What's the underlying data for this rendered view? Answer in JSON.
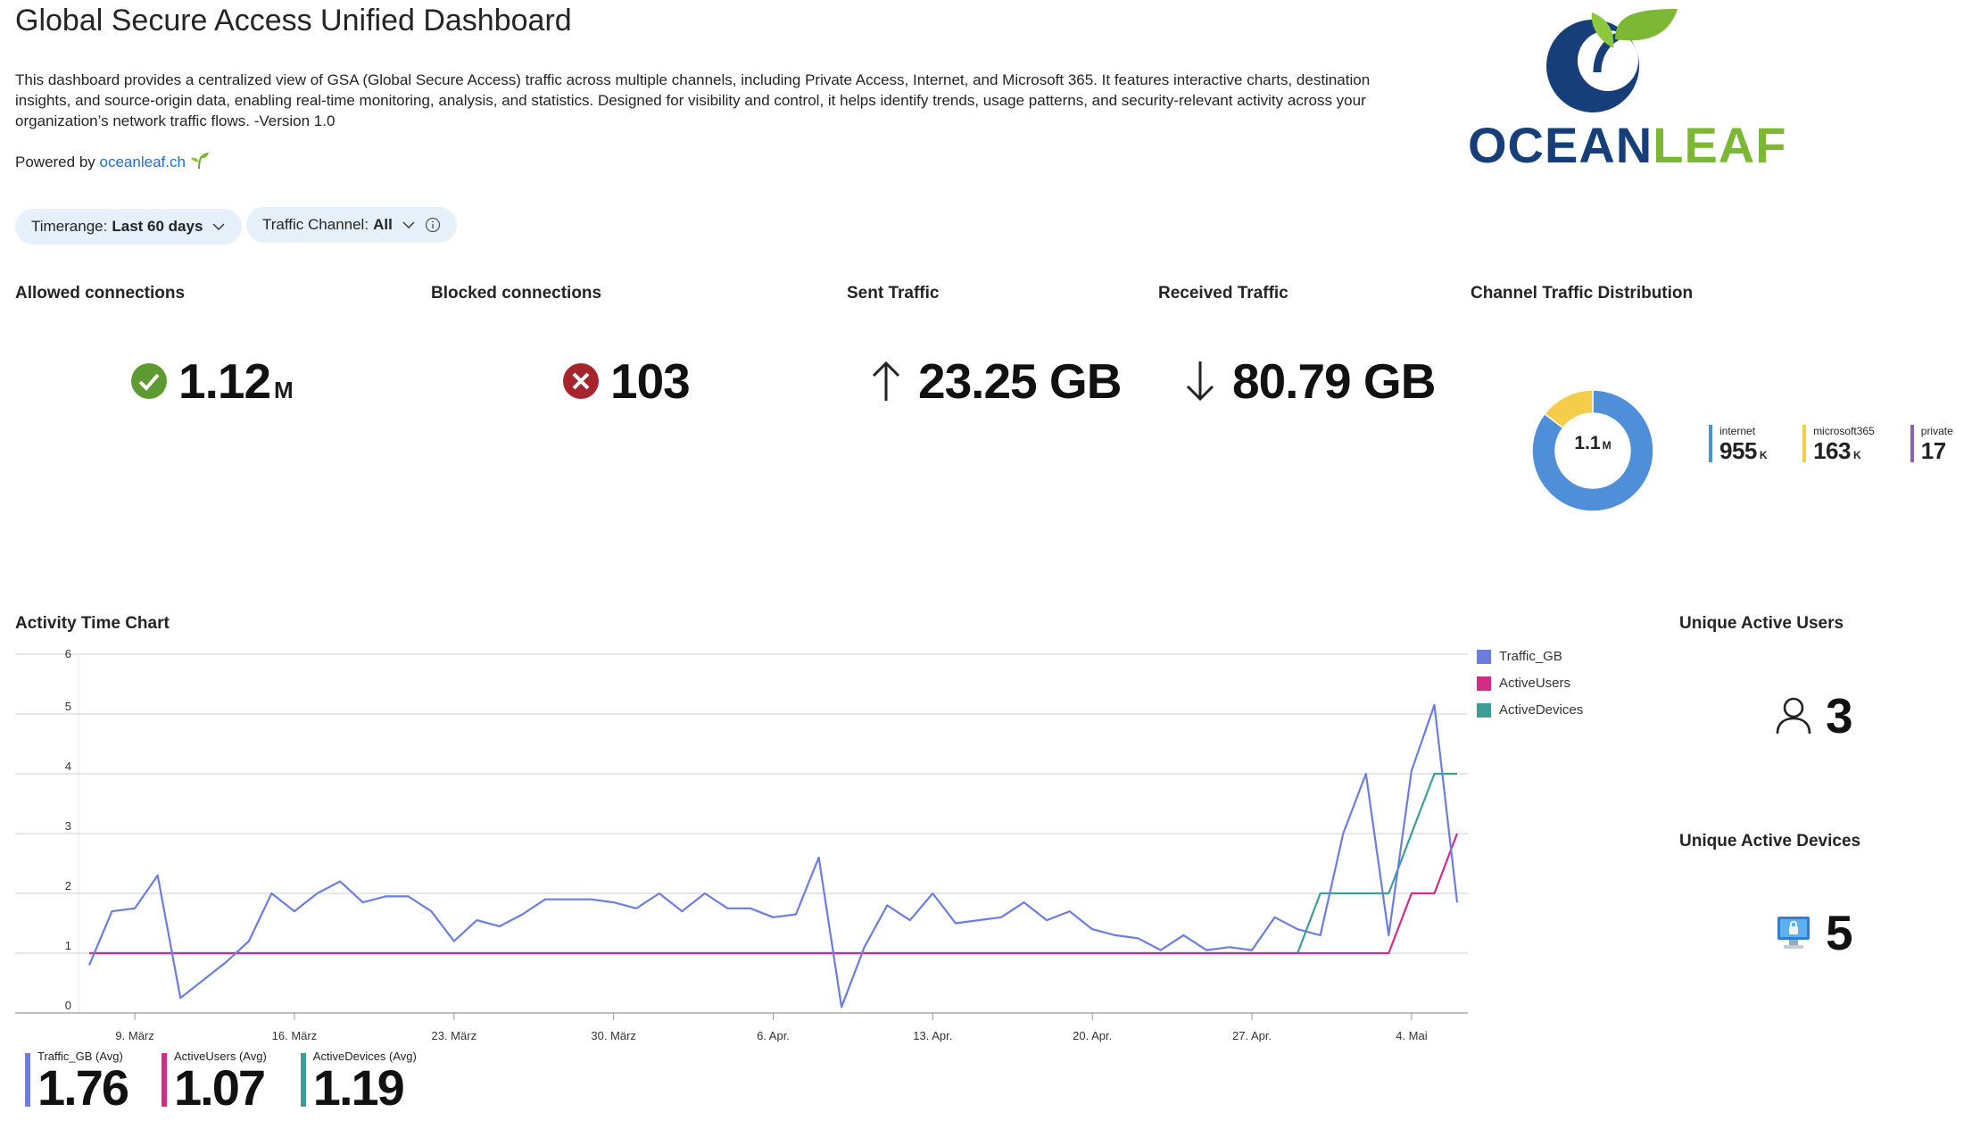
{
  "header": {
    "title": "Global Secure Access Unified Dashboard",
    "description": "This dashboard provides a centralized view of GSA (Global Secure Access) traffic across multiple channels, including Private Access, Internet, and Microsoft 365. It features interactive charts, destination insights, and source-origin data, enabling real-time monitoring, analysis, and statistics. Designed for visibility and control, it helps identify trends, usage patterns, and security-relevant activity across your organization’s network traffic flows. -Version 1.0",
    "powered_label": "Powered by",
    "powered_link": "oceanleaf.ch",
    "logo_text_ocean": "OCEAN",
    "logo_text_leaf": "LEAF"
  },
  "filters": {
    "timerange_label": "Timerange:",
    "timerange_value": "Last 60 days",
    "channel_label": "Traffic Channel:",
    "channel_value": "All"
  },
  "tiles": {
    "allowed": {
      "title": "Allowed connections",
      "value": "1.12",
      "unit": "M",
      "icon": "check-circle-icon"
    },
    "blocked": {
      "title": "Blocked connections",
      "value": "103",
      "icon": "x-circle-icon"
    },
    "sent": {
      "title": "Sent Traffic",
      "value": "23.25 GB",
      "icon": "arrow-up-icon"
    },
    "received": {
      "title": "Received Traffic",
      "value": "80.79 GB",
      "icon": "arrow-down-icon"
    }
  },
  "distribution": {
    "title": "Channel Traffic Distribution",
    "center_value": "1.1",
    "center_unit": "M",
    "items": [
      {
        "name": "internet",
        "value": "955",
        "unit": "K",
        "color": "#4f8fd9",
        "fraction": 0.854
      },
      {
        "name": "microsoft365",
        "value": "163",
        "unit": "K",
        "color": "#f5cd4a",
        "fraction": 0.146
      },
      {
        "name": "private",
        "value": "17",
        "unit": "",
        "color": "#8a63b8",
        "fraction": 2e-05
      }
    ]
  },
  "activity": {
    "title": "Activity Time Chart",
    "legend": [
      {
        "name": "Traffic_GB",
        "color": "#6b7de0"
      },
      {
        "name": "ActiveUsers",
        "color": "#d42b87"
      },
      {
        "name": "ActiveDevices",
        "color": "#3c9e97"
      }
    ],
    "averages": [
      {
        "name": "Traffic_GB (Avg)",
        "value": "1.76",
        "color": "#6b7de0"
      },
      {
        "name": "ActiveUsers (Avg)",
        "value": "1.07",
        "color": "#d42b87"
      },
      {
        "name": "ActiveDevices (Avg)",
        "value": "1.19",
        "color": "#3c9e97"
      }
    ]
  },
  "unique_users": {
    "title": "Unique Active Users",
    "value": "3",
    "icon": "person-icon"
  },
  "unique_devices": {
    "title": "Unique Active Devices",
    "value": "5",
    "icon": "monitor-lock-icon"
  },
  "chart_data": {
    "type": "line",
    "title": "Activity Time Chart",
    "x_start": "2025-03-07",
    "ylim": [
      0,
      6
    ],
    "yticks": [
      0,
      1,
      2,
      3,
      4,
      5,
      6
    ],
    "xtick_labels": [
      "9. März",
      "16. März",
      "23. März",
      "30. März",
      "6. Apr.",
      "13. Apr.",
      "20. Apr.",
      "27. Apr.",
      "4. Mai"
    ],
    "xtick_days": [
      2,
      9,
      16,
      23,
      30,
      37,
      44,
      51,
      58
    ],
    "legend_position": "right",
    "series": [
      {
        "name": "Traffic_GB",
        "color": "#6b7de0",
        "values": [
          0.8,
          1.7,
          1.75,
          2.3,
          0.25,
          0.55,
          0.85,
          1.2,
          2.0,
          1.7,
          2.0,
          2.2,
          1.85,
          1.95,
          1.95,
          1.7,
          1.2,
          1.55,
          1.45,
          1.65,
          1.9,
          1.9,
          1.9,
          1.85,
          1.75,
          2.0,
          1.7,
          2.0,
          1.75,
          1.75,
          1.6,
          1.65,
          2.6,
          0.1,
          1.1,
          1.8,
          1.55,
          2.0,
          1.5,
          1.55,
          1.6,
          1.85,
          1.55,
          1.7,
          1.4,
          1.3,
          1.25,
          1.05,
          1.3,
          1.05,
          1.1,
          1.05,
          1.6,
          1.4,
          1.3,
          3.0,
          4.0,
          1.3,
          4.05,
          5.15,
          1.85
        ]
      },
      {
        "name": "ActiveUsers",
        "color": "#d42b87",
        "values": [
          1,
          1,
          1,
          1,
          1,
          1,
          1,
          1,
          1,
          1,
          1,
          1,
          1,
          1,
          1,
          1,
          1,
          1,
          1,
          1,
          1,
          1,
          1,
          1,
          1,
          1,
          1,
          1,
          1,
          1,
          1,
          1,
          1,
          1,
          1,
          1,
          1,
          1,
          1,
          1,
          1,
          1,
          1,
          1,
          1,
          1,
          1,
          1,
          1,
          1,
          1,
          1,
          1,
          1,
          1,
          1,
          1,
          1,
          2,
          2,
          3
        ]
      },
      {
        "name": "ActiveDevices",
        "color": "#3c9e97",
        "values": [
          1,
          1,
          1,
          1,
          1,
          1,
          1,
          1,
          1,
          1,
          1,
          1,
          1,
          1,
          1,
          1,
          1,
          1,
          1,
          1,
          1,
          1,
          1,
          1,
          1,
          1,
          1,
          1,
          1,
          1,
          1,
          1,
          1,
          1,
          1,
          1,
          1,
          1,
          1,
          1,
          1,
          1,
          1,
          1,
          1,
          1,
          1,
          1,
          1,
          1,
          1,
          1,
          1,
          1,
          2,
          2,
          2,
          2,
          3,
          4,
          4
        ]
      }
    ]
  }
}
